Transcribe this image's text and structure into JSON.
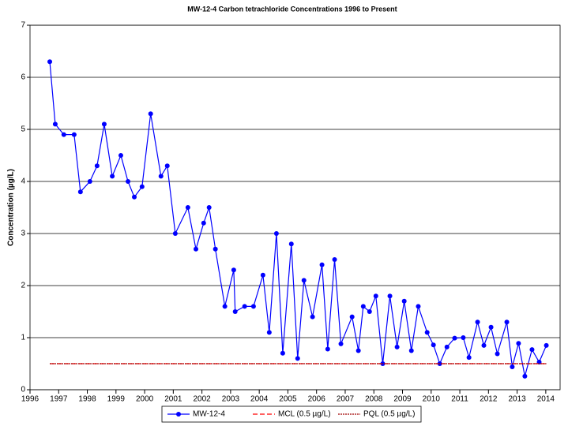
{
  "chart_data": {
    "type": "line",
    "title": "MW-12-4 Carbon tetrachloride Concentrations 1996 to Present",
    "y_label": "Concentration (µg/L)",
    "xlim": [
      1996,
      2014.5
    ],
    "xticks": [
      1996,
      1997,
      1998,
      1999,
      2000,
      2001,
      2002,
      2003,
      2004,
      2005,
      2006,
      2007,
      2008,
      2009,
      2010,
      2011,
      2012,
      2013,
      2014
    ],
    "ylim": [
      0,
      7
    ],
    "yticks": [
      0,
      1,
      2,
      3,
      4,
      5,
      6,
      7
    ],
    "grid": true,
    "legend": "bottom",
    "series": [
      {
        "name": "MW-12-4",
        "color": "#0000ff",
        "marker": "circle",
        "line_style": "solid",
        "x": [
          1996.69,
          1996.88,
          1997.18,
          1997.54,
          1997.76,
          1998.09,
          1998.34,
          1998.59,
          1998.87,
          1999.17,
          1999.42,
          1999.64,
          1999.91,
          2000.21,
          2000.57,
          2000.79,
          2001.07,
          2001.51,
          2001.79,
          2002.06,
          2002.25,
          2002.47,
          2002.8,
          2003.11,
          2003.16,
          2003.49,
          2003.8,
          2004.13,
          2004.35,
          2004.6,
          2004.82,
          2005.12,
          2005.34,
          2005.56,
          2005.86,
          2006.19,
          2006.39,
          2006.63,
          2006.85,
          2007.24,
          2007.46,
          2007.63,
          2007.85,
          2008.07,
          2008.31,
          2008.56,
          2008.81,
          2009.06,
          2009.31,
          2009.55,
          2009.86,
          2010.08,
          2010.3,
          2010.55,
          2010.82,
          2011.12,
          2011.32,
          2011.62,
          2011.84,
          2012.09,
          2012.31,
          2012.64,
          2012.83,
          2013.05,
          2013.27,
          2013.52,
          2013.77,
          2014.02
        ],
        "values": [
          6.3,
          5.1,
          4.9,
          4.9,
          3.8,
          4.0,
          4.3,
          5.1,
          4.1,
          4.5,
          4.0,
          3.7,
          3.9,
          5.3,
          4.1,
          4.3,
          3.0,
          3.5,
          2.7,
          3.2,
          3.5,
          2.7,
          1.6,
          2.3,
          1.5,
          1.6,
          1.6,
          2.2,
          1.1,
          3.0,
          0.7,
          2.8,
          0.6,
          2.1,
          1.4,
          2.4,
          0.78,
          2.5,
          0.88,
          1.4,
          0.75,
          1.6,
          1.5,
          1.8,
          0.5,
          1.8,
          0.82,
          1.7,
          0.75,
          1.6,
          1.1,
          0.86,
          0.5,
          0.82,
          0.99,
          1.0,
          0.62,
          1.3,
          0.85,
          1.2,
          0.69,
          1.3,
          0.44,
          0.89,
          0.26,
          0.77,
          0.53,
          0.85
        ]
      },
      {
        "name": "MCL (0.5 µg/L)",
        "color": "#ff0000",
        "line_style": "dashed",
        "x": [
          1996.69,
          2014.02
        ],
        "values": [
          0.5,
          0.5
        ]
      },
      {
        "name": "PQL (0.5 µg/L)",
        "color": "#a00000",
        "line_style": "dotted",
        "x": [
          1996.69,
          2014.02
        ],
        "values": [
          0.5,
          0.5
        ]
      }
    ]
  }
}
